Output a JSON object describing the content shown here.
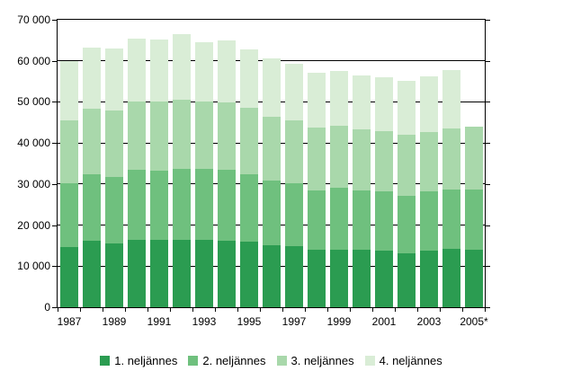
{
  "chart_data": {
    "type": "bar",
    "stacked": true,
    "title": "",
    "xlabel": "",
    "ylabel": "",
    "ylim": [
      0,
      70000
    ],
    "y_tick_step": 10000,
    "y_tick_labels": [
      "0",
      "10 000",
      "20 000",
      "30 000",
      "40 000",
      "50 000",
      "60 000",
      "70 000"
    ],
    "grid": true,
    "legend_position": "bottom",
    "categories": [
      "1987",
      "1988",
      "1989",
      "1990",
      "1991",
      "1992",
      "1993",
      "1994",
      "1995",
      "1996",
      "1997",
      "1998",
      "1999",
      "2000",
      "2001",
      "2002",
      "2003",
      "2004",
      "2005*"
    ],
    "x_tick_labels_shown": [
      "1987",
      "1989",
      "1991",
      "1993",
      "1995",
      "1997",
      "1999",
      "2001",
      "2003",
      "2005*"
    ],
    "series": [
      {
        "name": "1. neljännes",
        "color": "#2B9C51",
        "values": [
          14700,
          16100,
          15600,
          16500,
          16400,
          16500,
          16400,
          16200,
          15900,
          15100,
          14800,
          13900,
          14100,
          13900,
          13800,
          13200,
          13800,
          14200,
          14000
        ]
      },
      {
        "name": "2. neljännes",
        "color": "#6FC07E",
        "values": [
          15500,
          16300,
          16100,
          17000,
          16900,
          17200,
          17400,
          17300,
          16500,
          15800,
          15300,
          14600,
          14900,
          14500,
          14400,
          13900,
          14400,
          14500,
          14600
        ]
      },
      {
        "name": "3. neljännes",
        "color": "#A9D8AB",
        "values": [
          15300,
          16000,
          16300,
          16500,
          16900,
          16900,
          16300,
          16400,
          16200,
          15500,
          15400,
          15200,
          15200,
          14900,
          14700,
          14900,
          14500,
          14900,
          15400
        ]
      },
      {
        "name": "4. neljännes",
        "color": "#D9EDD6",
        "values": [
          14400,
          14800,
          15100,
          15500,
          15100,
          15900,
          14400,
          15000,
          14200,
          14200,
          13800,
          13400,
          13400,
          13200,
          13200,
          13200,
          13600,
          14100,
          0
        ]
      }
    ],
    "annual_totals": [
      59900,
      63200,
      63100,
      65500,
      65300,
      66500,
      64500,
      64900,
      62800,
      60600,
      59300,
      57100,
      57600,
      56500,
      56100,
      55200,
      56300,
      57700,
      44000
    ],
    "colors": {
      "axis": "#000000",
      "text": "#000000",
      "background": "#ffffff"
    }
  }
}
